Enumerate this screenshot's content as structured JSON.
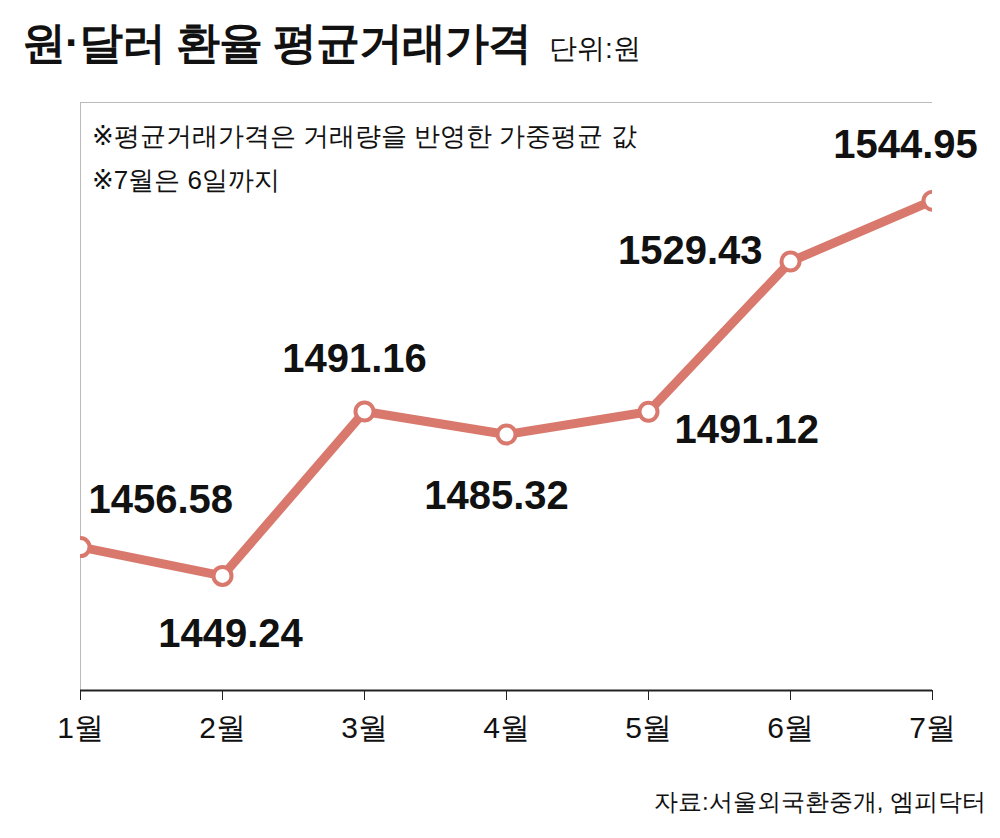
{
  "chart_data": {
    "type": "line",
    "title": "원·달러 환율 평균거래가격",
    "unit": "단위:원",
    "notes": [
      "※평균거래가격은 거래량을 반영한 가중평균 값",
      "※7월은 6일까지"
    ],
    "source": "자료:서울외국환중개, 엠피닥터",
    "categories": [
      "1월",
      "2월",
      "3월",
      "4월",
      "5월",
      "6월",
      "7월"
    ],
    "values": [
      1456.58,
      1449.24,
      1491.16,
      1485.32,
      1491.12,
      1529.43,
      1544.95
    ],
    "color": "#d9786c",
    "marker": "circle",
    "line_style": "solid",
    "ylim": [
      1420,
      1570
    ],
    "yticks": [],
    "tick_labels": "x",
    "data_labels": true,
    "grid": false
  }
}
